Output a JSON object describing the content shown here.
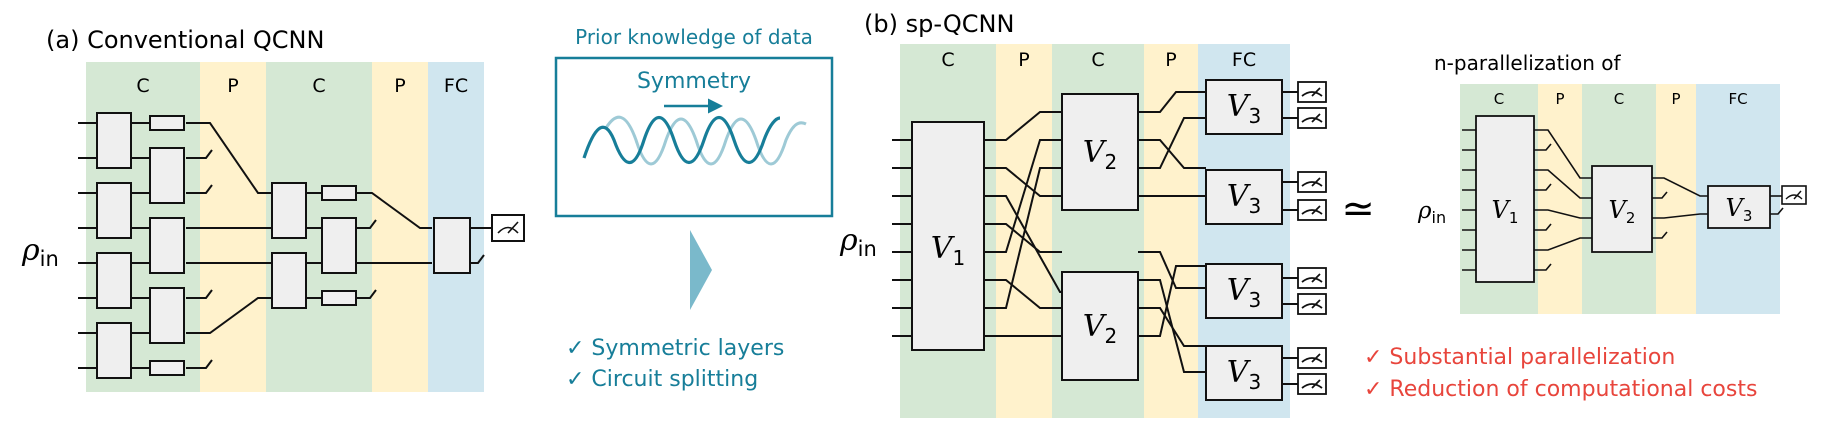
{
  "panel_a": {
    "title": "(a) Conventional QCNN",
    "layers": [
      "C",
      "P",
      "C",
      "P",
      "FC"
    ],
    "input_label_base": "ρ",
    "input_label_sub": "in"
  },
  "middle": {
    "prior_title": "Prior knowledge of data",
    "symmetry_label": "Symmetry",
    "checks": [
      "✓ Symmetric layers",
      "✓ Circuit splitting"
    ]
  },
  "panel_b": {
    "title": "(b) sp-QCNN",
    "layers": [
      "C",
      "P",
      "C",
      "P",
      "FC"
    ],
    "input_label_base": "ρ",
    "input_label_sub": "in",
    "v1_base": "V",
    "v1_sub": "1",
    "v2_base": "V",
    "v2_sub": "2",
    "v3_base": "V",
    "v3_sub": "3",
    "approx_symbol": "≃",
    "parallel_title": "n-parallelization of",
    "small_layers": [
      "C",
      "P",
      "C",
      "P",
      "FC"
    ],
    "benefits": [
      "✓ Substantial parallelization",
      "✓ Reduction of computational costs"
    ]
  },
  "colors": {
    "conv": "#d5e8d4",
    "pool": "#fff2cc",
    "fc": "#d0e6ef",
    "teal": "#177e99",
    "teal_light": "#9ecad6",
    "red": "#e8453c",
    "gate_fill": "#efefef"
  }
}
